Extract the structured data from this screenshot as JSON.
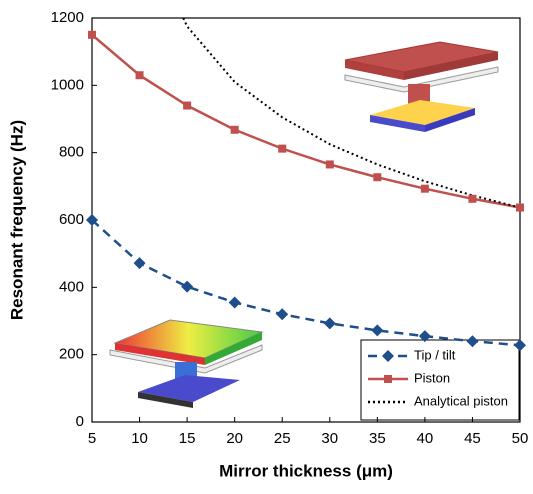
{
  "chart_data": {
    "type": "line",
    "x_label": "Mirror thickness (μm)",
    "y_label": "Resonant frequency (Hz)",
    "x": [
      5,
      10,
      15,
      20,
      25,
      30,
      35,
      40,
      45,
      50
    ],
    "series": [
      {
        "name": "Tip / tilt",
        "color": "#1f4e8c",
        "marker": "diamond",
        "dash": "dashed",
        "values": [
          600,
          472,
          402,
          355,
          320,
          293,
          272,
          255,
          240,
          228
        ]
      },
      {
        "name": "Piston",
        "color": "#c0504d",
        "marker": "square",
        "dash": "solid",
        "values": [
          1150,
          1030,
          940,
          868,
          812,
          765,
          727,
          693,
          663,
          637
        ]
      },
      {
        "name": "Analytical piston",
        "color": "#000000",
        "marker": "none",
        "dash": "dotted",
        "x": [
          14.6,
          15,
          20,
          25,
          30,
          35,
          40,
          45,
          50
        ],
        "values": [
          1200,
          1175,
          1010,
          905,
          825,
          765,
          715,
          673,
          637
        ]
      }
    ],
    "xlim": [
      5,
      50
    ],
    "xticks": [
      5,
      10,
      15,
      20,
      25,
      30,
      35,
      40,
      45,
      50
    ],
    "ylim": [
      0,
      1200
    ],
    "yticks": [
      0,
      200,
      400,
      600,
      800,
      1000,
      1200
    ],
    "legend": "lower right"
  }
}
